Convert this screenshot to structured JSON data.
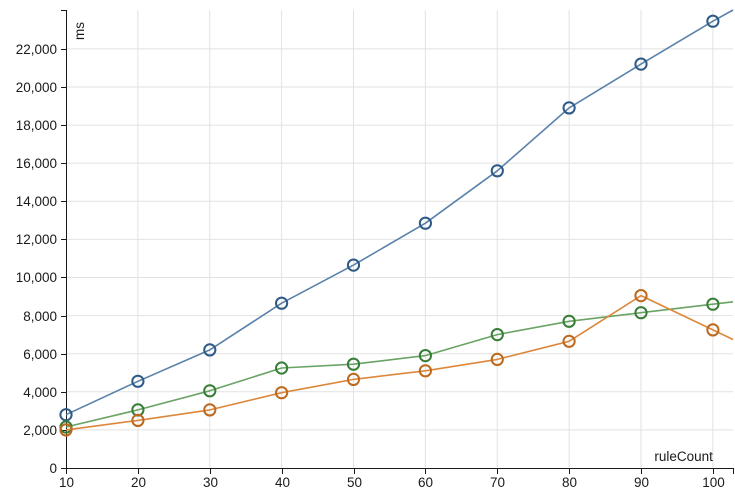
{
  "chart_data": {
    "type": "line",
    "title": "",
    "xlabel": "ruleCount",
    "ylabel": "ms",
    "x": [
      10,
      20,
      30,
      40,
      50,
      60,
      70,
      80,
      90,
      100
    ],
    "xticks": [
      10,
      20,
      30,
      40,
      50,
      60,
      70,
      80,
      90,
      100
    ],
    "yticks": [
      0,
      2000,
      4000,
      6000,
      8000,
      10000,
      12000,
      14000,
      16000,
      18000,
      20000,
      22000
    ],
    "xlim": [
      10,
      102.8
    ],
    "ylim": [
      0,
      24040
    ],
    "grid": true,
    "legend": "none",
    "ytick_format": "thousands-comma",
    "series": [
      {
        "name": "blue",
        "line_color": "#5a82aa",
        "marker_color": "#2d5a87",
        "values": [
          2800,
          4550,
          6200,
          8650,
          10650,
          12850,
          15600,
          18900,
          21200,
          23450
        ],
        "tail": {
          "x": 102.8,
          "value": 24040
        }
      },
      {
        "name": "green",
        "line_color": "#69a464",
        "marker_color": "#377d37",
        "values": [
          2150,
          3050,
          4050,
          5250,
          5450,
          5900,
          7000,
          7700,
          8150,
          8600
        ],
        "tail": {
          "x": 102.8,
          "value": 8725
        }
      },
      {
        "name": "orange",
        "line_color": "#dc873c",
        "marker_color": "#be691e",
        "values": [
          2000,
          2500,
          3050,
          3950,
          4650,
          5100,
          5700,
          6650,
          9050,
          7250
        ],
        "tail": {
          "x": 102.8,
          "value": 6745
        }
      }
    ],
    "styles": {
      "grid_color": "#e2e2e2",
      "axis_color": "#1a1a1a",
      "tick_label_color": "#1a1a1a",
      "background": "#ffffff"
    }
  }
}
